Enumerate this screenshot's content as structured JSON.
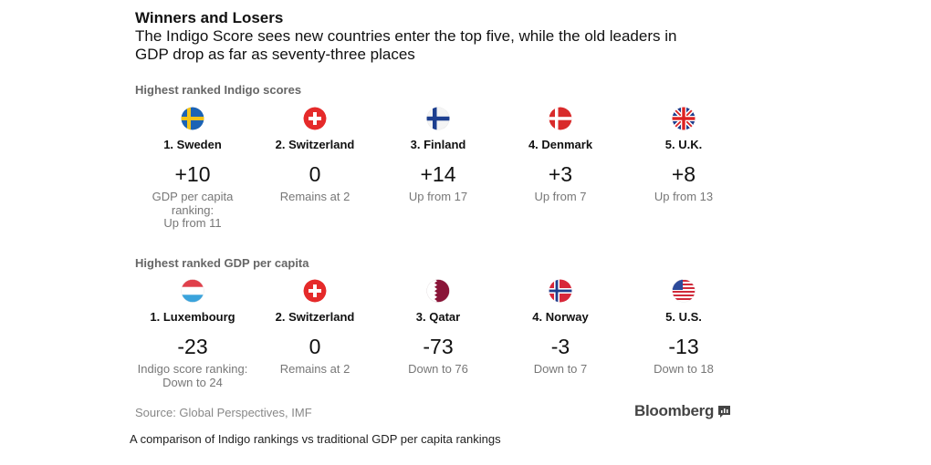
{
  "header": {
    "title": "Winners and Losers",
    "subtitle": "The Indigo Score sees new countries enter the top five, while the old leaders in GDP drop as far as seventy-three places"
  },
  "sections": [
    {
      "label": "Highest ranked Indigo scores",
      "items": [
        {
          "country": "1. Sweden",
          "change": "+10",
          "desc": "GDP per capita\nranking:\nUp from 11",
          "flag": "sweden-flag-icon"
        },
        {
          "country": "2. Switzerland",
          "change": "0",
          "desc": "Remains at 2",
          "flag": "switzerland-flag-icon"
        },
        {
          "country": "3. Finland",
          "change": "+14",
          "desc": "Up from 17",
          "flag": "finland-flag-icon"
        },
        {
          "country": "4. Denmark",
          "change": "+3",
          "desc": "Up from 7",
          "flag": "denmark-flag-icon"
        },
        {
          "country": "5. U.K.",
          "change": "+8",
          "desc": "Up from 13",
          "flag": "uk-flag-icon"
        }
      ]
    },
    {
      "label": "Highest ranked GDP per capita",
      "items": [
        {
          "country": "1. Luxembourg",
          "change": "-23",
          "desc": "Indigo score ranking:\nDown to 24",
          "flag": "luxembourg-flag-icon"
        },
        {
          "country": "2. Switzerland",
          "change": "0",
          "desc": "Remains at 2",
          "flag": "switzerland-flag-icon"
        },
        {
          "country": "3. Qatar",
          "change": "-73",
          "desc": "Down to 76",
          "flag": "qatar-flag-icon"
        },
        {
          "country": "4. Norway",
          "change": "-3",
          "desc": "Down to 7",
          "flag": "norway-flag-icon"
        },
        {
          "country": "5. U.S.",
          "change": "-13",
          "desc": "Down to 18",
          "flag": "us-flag-icon"
        }
      ]
    }
  ],
  "footer": {
    "source": "Source: Global Perspectives, IMF",
    "brand": "Bloomberg",
    "caption": "A comparison of Indigo rankings vs traditional GDP per capita rankings"
  },
  "chart_data": {
    "type": "table",
    "title": "Winners and Losers",
    "columns": [
      "rank_list",
      "country",
      "rank_change",
      "detail"
    ],
    "rows": [
      [
        "Highest ranked Indigo scores",
        "1. Sweden",
        10,
        "GDP per capita ranking: Up from 11"
      ],
      [
        "Highest ranked Indigo scores",
        "2. Switzerland",
        0,
        "Remains at 2"
      ],
      [
        "Highest ranked Indigo scores",
        "3. Finland",
        14,
        "Up from 17"
      ],
      [
        "Highest ranked Indigo scores",
        "4. Denmark",
        3,
        "Up from 7"
      ],
      [
        "Highest ranked Indigo scores",
        "5. U.K.",
        8,
        "Up from 13"
      ],
      [
        "Highest ranked GDP per capita",
        "1. Luxembourg",
        -23,
        "Indigo score ranking: Down to 24"
      ],
      [
        "Highest ranked GDP per capita",
        "2. Switzerland",
        0,
        "Remains at 2"
      ],
      [
        "Highest ranked GDP per capita",
        "3. Qatar",
        -73,
        "Down to 76"
      ],
      [
        "Highest ranked GDP per capita",
        "4. Norway",
        -3,
        "Down to 7"
      ],
      [
        "Highest ranked GDP per capita",
        "5. U.S.",
        -13,
        "Down to 18"
      ]
    ]
  }
}
